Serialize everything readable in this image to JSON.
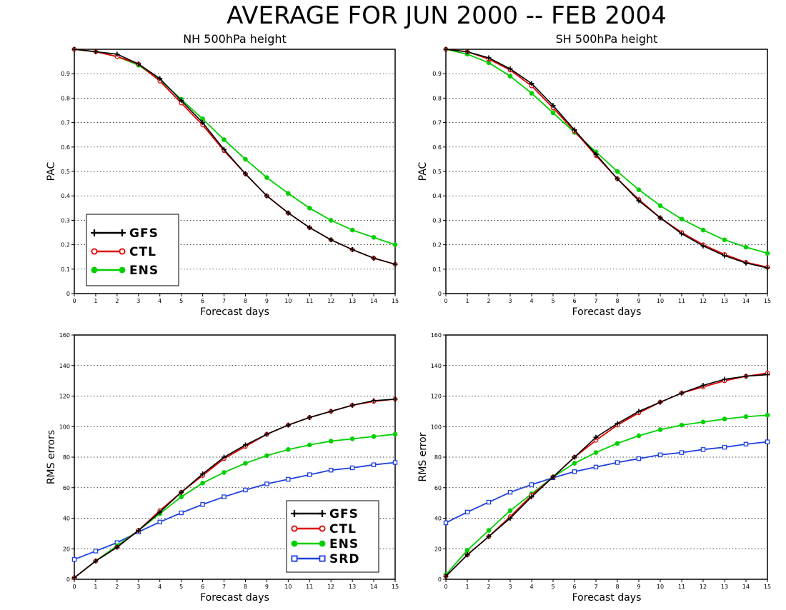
{
  "figure": {
    "title": "AVERAGE FOR JUN 2000 -- FEB 2004"
  },
  "series_styles": {
    "GFS": {
      "color": "#000000",
      "marker": "plus"
    },
    "CTL": {
      "color": "#e00000",
      "marker": "circle-open"
    },
    "ENS": {
      "color": "#00d000",
      "marker": "circle-filled"
    },
    "SRD": {
      "color": "#2040e0",
      "marker": "square-open"
    }
  },
  "chart_data": [
    {
      "id": "nh-pac",
      "type": "line",
      "title": "NH 500hPa height",
      "xlabel": "Forecast days",
      "ylabel": "PAC",
      "xlim": [
        0,
        15
      ],
      "ylim": [
        0,
        1
      ],
      "x_ticks": [
        "0",
        "1",
        "2",
        "3",
        "4",
        "5",
        "6",
        "7",
        "8",
        "9",
        "10",
        "11",
        "12",
        "13",
        "14",
        "15"
      ],
      "y_ticks": [
        "0",
        "0.1",
        "0.2",
        "0.3",
        "0.4",
        "0.5",
        "0.6",
        "0.7",
        "0.8",
        "0.9"
      ],
      "grid": "horizontal-dotted",
      "legend_position": "bottom-left",
      "x": [
        0,
        1,
        2,
        3,
        4,
        5,
        6,
        7,
        8,
        9,
        10,
        11,
        12,
        13,
        14,
        15
      ],
      "series": [
        {
          "name": "GFS",
          "values": [
            1.0,
            0.99,
            0.98,
            0.94,
            0.88,
            0.79,
            0.7,
            0.59,
            0.49,
            0.4,
            0.33,
            0.27,
            0.22,
            0.18,
            0.145,
            0.12
          ]
        },
        {
          "name": "CTL",
          "values": [
            1.0,
            0.99,
            0.97,
            0.94,
            0.87,
            0.78,
            0.69,
            0.585,
            0.49,
            0.4,
            0.33,
            0.27,
            0.22,
            0.18,
            0.145,
            0.12
          ]
        },
        {
          "name": "ENS",
          "values": [
            1.0,
            0.99,
            0.97,
            0.935,
            0.875,
            0.795,
            0.715,
            0.63,
            0.55,
            0.475,
            0.41,
            0.35,
            0.3,
            0.26,
            0.23,
            0.2
          ]
        }
      ]
    },
    {
      "id": "sh-pac",
      "type": "line",
      "title": "SH 500hPa height",
      "xlabel": "Forecast days",
      "ylabel": "PAC",
      "xlim": [
        0,
        15
      ],
      "ylim": [
        0,
        1
      ],
      "x_ticks": [
        "0",
        "1",
        "2",
        "3",
        "4",
        "5",
        "6",
        "7",
        "8",
        "9",
        "10",
        "11",
        "12",
        "13",
        "14",
        "15"
      ],
      "y_ticks": [
        "0",
        "0.1",
        "0.2",
        "0.3",
        "0.4",
        "0.5",
        "0.6",
        "0.7",
        "0.8",
        "0.9"
      ],
      "grid": "horizontal-dotted",
      "x": [
        0,
        1,
        2,
        3,
        4,
        5,
        6,
        7,
        8,
        9,
        10,
        11,
        12,
        13,
        14,
        15
      ],
      "series": [
        {
          "name": "GFS",
          "values": [
            1.0,
            0.99,
            0.965,
            0.92,
            0.86,
            0.77,
            0.67,
            0.57,
            0.47,
            0.38,
            0.31,
            0.245,
            0.195,
            0.155,
            0.125,
            0.105
          ]
        },
        {
          "name": "CTL",
          "values": [
            1.0,
            0.99,
            0.96,
            0.915,
            0.85,
            0.76,
            0.665,
            0.565,
            0.47,
            0.385,
            0.31,
            0.25,
            0.2,
            0.16,
            0.128,
            0.108
          ]
        },
        {
          "name": "ENS",
          "values": [
            1.0,
            0.98,
            0.945,
            0.89,
            0.82,
            0.74,
            0.66,
            0.58,
            0.5,
            0.425,
            0.36,
            0.305,
            0.26,
            0.22,
            0.19,
            0.165
          ]
        }
      ]
    },
    {
      "id": "nh-rms",
      "type": "line",
      "title": "",
      "xlabel": "Forecast days",
      "ylabel": "RMS errors",
      "xlim": [
        0,
        15
      ],
      "ylim": [
        0,
        160
      ],
      "x_ticks": [
        "0",
        "1",
        "2",
        "3",
        "4",
        "5",
        "6",
        "7",
        "8",
        "9",
        "10",
        "11",
        "12",
        "13",
        "14",
        "15"
      ],
      "y_ticks": [
        "0",
        "20",
        "40",
        "60",
        "80",
        "100",
        "120",
        "140",
        "160"
      ],
      "grid": "horizontal-dotted",
      "legend_position": "bottom-right",
      "x": [
        0,
        1,
        2,
        3,
        4,
        5,
        6,
        7,
        8,
        9,
        10,
        11,
        12,
        13,
        14,
        15
      ],
      "series": [
        {
          "name": "GFS",
          "values": [
            1,
            12,
            21,
            32,
            44,
            57,
            69,
            80,
            88,
            95,
            101,
            106,
            110,
            114,
            117,
            118
          ]
        },
        {
          "name": "CTL",
          "values": [
            1,
            12,
            21,
            32,
            45,
            57,
            68,
            79,
            87,
            95,
            101,
            106,
            110,
            114,
            116.5,
            118
          ]
        },
        {
          "name": "ENS",
          "values": [
            1,
            12,
            22,
            32,
            43,
            54,
            63,
            70,
            76,
            81,
            85,
            88,
            90.5,
            92,
            93.5,
            95
          ]
        },
        {
          "name": "SRD",
          "values": [
            13,
            18.5,
            24,
            31,
            37.5,
            43.5,
            49,
            54,
            58.5,
            62.5,
            65.5,
            68.5,
            71.5,
            73,
            75,
            76.5
          ]
        }
      ]
    },
    {
      "id": "sh-rms",
      "type": "line",
      "title": "",
      "xlabel": "Forecast days",
      "ylabel": "RMS error",
      "xlim": [
        0,
        15
      ],
      "ylim": [
        0,
        160
      ],
      "x_ticks": [
        "0",
        "1",
        "2",
        "3",
        "4",
        "5",
        "6",
        "7",
        "8",
        "9",
        "10",
        "11",
        "12",
        "13",
        "14",
        "15"
      ],
      "y_ticks": [
        "0",
        "20",
        "40",
        "60",
        "80",
        "100",
        "120",
        "140",
        "160"
      ],
      "grid": "horizontal-dotted",
      "x": [
        0,
        1,
        2,
        3,
        4,
        5,
        6,
        7,
        8,
        9,
        10,
        11,
        12,
        13,
        14,
        15
      ],
      "series": [
        {
          "name": "GFS",
          "values": [
            2,
            16,
            28,
            40,
            54,
            67,
            80,
            93,
            102,
            110,
            116,
            122,
            127,
            131,
            133,
            134
          ]
        },
        {
          "name": "CTL",
          "values": [
            2,
            16,
            28,
            41,
            55,
            67,
            80,
            91,
            101,
            109,
            116,
            122,
            126,
            130,
            133,
            135
          ]
        },
        {
          "name": "ENS",
          "values": [
            3,
            19,
            32,
            45,
            56,
            67,
            76,
            83,
            89,
            94,
            98,
            101,
            103,
            105,
            106.5,
            107.5
          ]
        },
        {
          "name": "SRD",
          "values": [
            37,
            44,
            50.5,
            57,
            62,
            66.5,
            70.5,
            73.5,
            76.5,
            79,
            81.5,
            83,
            85,
            86.5,
            88.5,
            90
          ]
        }
      ]
    }
  ],
  "legends": [
    {
      "panel": "nh-pac",
      "entries": [
        "GFS",
        "CTL",
        "ENS"
      ]
    },
    {
      "panel": "nh-rms",
      "entries": [
        "GFS",
        "CTL",
        "ENS",
        "SRD"
      ]
    }
  ]
}
